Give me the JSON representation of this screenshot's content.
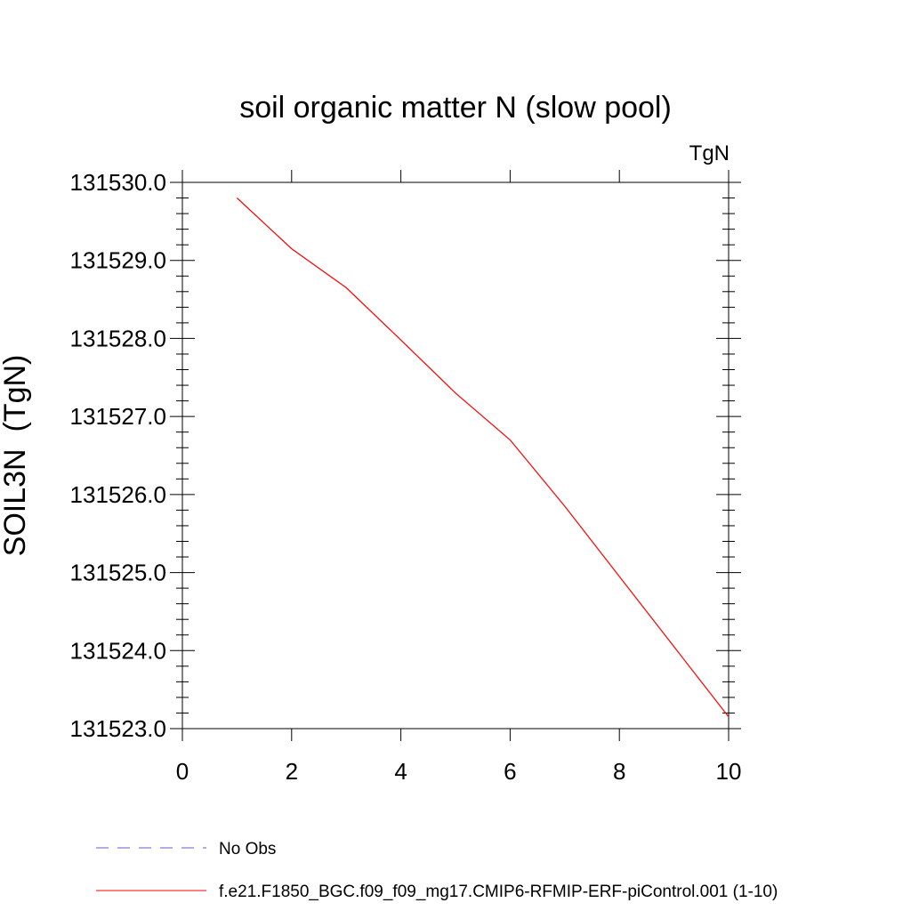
{
  "chart_data": {
    "type": "line",
    "title": "soil organic matter N (slow pool)",
    "units_label": "TgN",
    "ylabel": "SOIL3N  (TgN)",
    "xlabel": "",
    "xlim": [
      0,
      10
    ],
    "ylim": [
      131523.0,
      131530.0
    ],
    "xticks": [
      0,
      2,
      4,
      6,
      8,
      10
    ],
    "xtick_labels": [
      "0",
      "2",
      "4",
      "6",
      "8",
      "10"
    ],
    "yticks": [
      131523.0,
      131524.0,
      131525.0,
      131526.0,
      131527.0,
      131528.0,
      131529.0,
      131530.0
    ],
    "ytick_labels": [
      "131523.0",
      "131524.0",
      "131525.0",
      "131526.0",
      "131527.0",
      "131528.0",
      "131529.0",
      "131530.0"
    ],
    "grid": false,
    "legend_position": "bottom",
    "series": [
      {
        "name": "No Obs",
        "color": "#6a5acd",
        "dash": "dashed",
        "x": [],
        "y": []
      },
      {
        "name": "f.e21.F1850_BGC.f09_f09_mg17.CMIP6-RFMIP-ERF-piControl.001 (1-10)",
        "color": "#ff0000",
        "dash": "solid",
        "x": [
          1,
          2,
          3,
          4,
          5,
          6,
          7,
          8,
          9,
          10
        ],
        "y": [
          131529.8,
          131529.15,
          131528.65,
          131527.98,
          131527.3,
          131526.7,
          131525.85,
          131524.95,
          131524.05,
          131523.15
        ]
      }
    ]
  }
}
